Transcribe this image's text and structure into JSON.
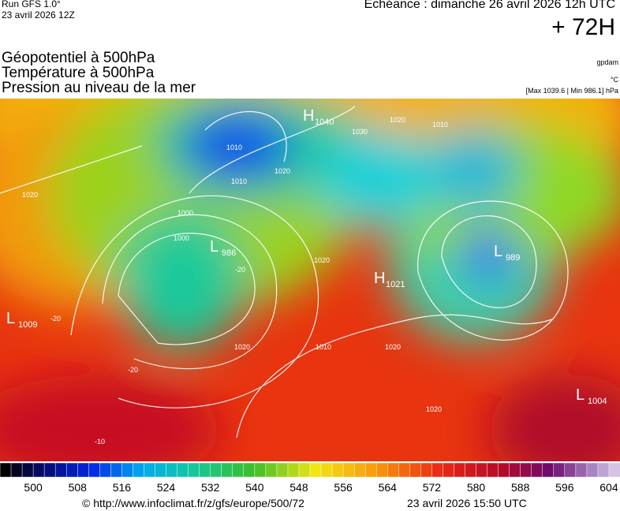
{
  "header": {
    "run": "Run GFS 1.0°",
    "run_date": "23 avril 2026 12Z",
    "echeance": "Echéance : dimanche 26 avril 2026 12h UTC",
    "lead": "+ 72H"
  },
  "legend": {
    "lines": [
      "Géopotentiel à 500hPa",
      "Température à 500hPa",
      "Pression au niveau de la mer"
    ],
    "units": [
      "gpdam",
      "°C",
      "[Max 1039.6 | Min 986.1] hPa"
    ]
  },
  "pressure_centers": [
    {
      "letter": "H",
      "value": "1040"
    },
    {
      "letter": "L",
      "value": "986"
    },
    {
      "letter": "H",
      "value": "1021"
    },
    {
      "letter": "L",
      "value": "989"
    },
    {
      "letter": "L",
      "value": "1009"
    },
    {
      "letter": "L",
      "value": "1004"
    }
  ],
  "isobar_labels": [
    "1020",
    "1010",
    "1000",
    "1010",
    "1020",
    "1030",
    "1020",
    "1010",
    "1000",
    "1020",
    "1020",
    "1010",
    "1020",
    "1020",
    "-20",
    "-20",
    "-20",
    "-10"
  ],
  "colorbar": {
    "range": [
      494,
      606
    ],
    "step": 2,
    "ticks": [
      500,
      508,
      516,
      524,
      532,
      540,
      548,
      556,
      564,
      572,
      580,
      588,
      596,
      604
    ]
  },
  "footer": {
    "source": "© http://www.infoclimat.fr/z/gfs/europe/500/72",
    "generated": "23 avril 2026 15:50 UTC"
  }
}
